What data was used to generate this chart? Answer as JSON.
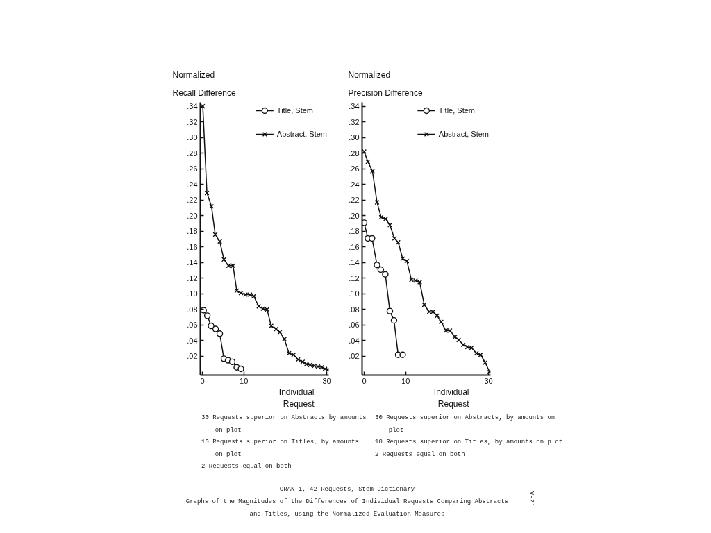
{
  "chart_data": [
    {
      "type": "line",
      "ylabel": "Normalized Recall Difference",
      "xlabel": "Individual Request",
      "xlim": [
        -0.5,
        30.5
      ],
      "ylim": [
        -0.004,
        0.345
      ],
      "xticks": [
        0,
        10,
        30
      ],
      "yticks": [
        {
          "value": 0.02,
          "label": ".02"
        },
        {
          "value": 0.04,
          "label": ".04"
        },
        {
          "value": 0.06,
          "label": ".06"
        },
        {
          "value": 0.08,
          "label": ".08"
        },
        {
          "value": 0.1,
          "label": ".10"
        },
        {
          "value": 0.12,
          "label": ".12"
        },
        {
          "value": 0.14,
          "label": ".14"
        },
        {
          "value": 0.16,
          "label": ".16"
        },
        {
          "value": 0.18,
          "label": ".18"
        },
        {
          "value": 0.2,
          "label": ".20"
        },
        {
          "value": 0.22,
          "label": ".22"
        },
        {
          "value": 0.24,
          "label": ".24"
        },
        {
          "value": 0.26,
          "label": ".26"
        },
        {
          "value": 0.28,
          "label": ".28"
        },
        {
          "value": 0.3,
          "label": ".30"
        },
        {
          "value": 0.32,
          "label": ".32"
        },
        {
          "value": 0.34,
          "label": ".34"
        }
      ],
      "legend": "top right",
      "line_style": "solid",
      "series": [
        {
          "name": "Title, Stem",
          "color": "#111111",
          "marker": "circle",
          "x": [
            0.3,
            1.2,
            2.1,
            3.2,
            4.2,
            5.2,
            6.2,
            7.2,
            8.3,
            9.3
          ],
          "values": [
            0.079,
            0.072,
            0.059,
            0.055,
            0.049,
            0.017,
            0.015,
            0.013,
            0.006,
            0.004
          ]
        },
        {
          "name": "Abstract, Stem",
          "color": "#111111",
          "marker": "cross",
          "x": [
            0.1,
            1.1,
            2.2,
            3.1,
            4.2,
            5.2,
            6.3,
            7.4,
            8.3,
            9.3,
            10.4,
            11.5,
            12.4,
            13.6,
            14.6,
            15.6,
            16.6,
            17.8,
            18.7,
            19.8,
            20.9,
            22.0,
            23.1,
            24.2,
            25.1,
            26.0,
            27.0,
            27.9,
            28.8,
            29.6,
            30.3
          ],
          "values": [
            0.34,
            0.229,
            0.212,
            0.176,
            0.167,
            0.144,
            0.136,
            0.136,
            0.104,
            0.101,
            0.099,
            0.099,
            0.097,
            0.084,
            0.081,
            0.08,
            0.059,
            0.055,
            0.051,
            0.042,
            0.024,
            0.022,
            0.016,
            0.013,
            0.01,
            0.009,
            0.008,
            0.007,
            0.006,
            0.004,
            0.003
          ]
        }
      ],
      "annotations": [
        "30 Requests superior on Abstracts by amounts on plot",
        "10 Requests superior on Titles, by amounts on plot",
        "2 Requests equal on both"
      ]
    },
    {
      "type": "line",
      "ylabel": "Normalized Precision Difference",
      "xlabel": "Individual Request",
      "xlim": [
        -0.5,
        30.5
      ],
      "ylim": [
        -0.004,
        0.345
      ],
      "xticks": [
        0,
        10,
        30
      ],
      "yticks": [
        {
          "value": 0.02,
          "label": ".02"
        },
        {
          "value": 0.04,
          "label": ".04"
        },
        {
          "value": 0.06,
          "label": ".06"
        },
        {
          "value": 0.08,
          "label": ".08"
        },
        {
          "value": 0.1,
          "label": ".10"
        },
        {
          "value": 0.12,
          "label": ".12"
        },
        {
          "value": 0.14,
          "label": ".14"
        },
        {
          "value": 0.16,
          "label": ".16"
        },
        {
          "value": 0.18,
          "label": ".18"
        },
        {
          "value": 0.2,
          "label": ".20"
        },
        {
          "value": 0.22,
          "label": ".22"
        },
        {
          "value": 0.24,
          "label": ".24"
        },
        {
          "value": 0.26,
          "label": ".26"
        },
        {
          "value": 0.28,
          "label": ".28"
        },
        {
          "value": 0.3,
          "label": ".30"
        },
        {
          "value": 0.32,
          "label": ".32"
        },
        {
          "value": 0.34,
          "label": ".34"
        }
      ],
      "legend": "top right",
      "line_style": "solid",
      "series": [
        {
          "name": "Title, Stem",
          "color": "#111111",
          "marker": "circle",
          "x": [
            0.0,
            0.9,
            1.9,
            3.1,
            4.0,
            5.1,
            6.2,
            7.2,
            8.2,
            9.3
          ],
          "values": [
            0.191,
            0.171,
            0.171,
            0.137,
            0.131,
            0.125,
            0.078,
            0.066,
            0.022,
            0.022
          ]
        },
        {
          "name": "Abstract, Stem",
          "color": "#111111",
          "marker": "cross",
          "x": [
            0.0,
            0.9,
            2.0,
            3.1,
            4.1,
            5.2,
            6.2,
            7.3,
            8.2,
            9.3,
            10.3,
            11.4,
            12.4,
            13.4,
            14.5,
            15.7,
            16.6,
            17.6,
            18.6,
            19.7,
            20.7,
            21.9,
            22.8,
            23.9,
            24.9,
            25.9,
            27.1,
            28.1,
            29.2,
            30.3
          ],
          "values": [
            0.282,
            0.269,
            0.257,
            0.217,
            0.198,
            0.196,
            0.188,
            0.171,
            0.166,
            0.145,
            0.142,
            0.118,
            0.117,
            0.115,
            0.086,
            0.077,
            0.077,
            0.072,
            0.064,
            0.053,
            0.053,
            0.045,
            0.041,
            0.035,
            0.032,
            0.031,
            0.024,
            0.022,
            0.012,
            0.0
          ]
        }
      ],
      "annotations": [
        "30 Requests superior on Abstracts, by amounts on plot",
        "10 Requests superior on Titles, by amounts on plot",
        "2 Requests equal on both"
      ]
    },
    {
      "type": "other",
      "annotations": [
        "CRAN-1, 42 Requests, Stem Dictionary",
        "Graphs of the Magnitudes of the Differences of Individual Requests Comparing Abstracts and Titles, using the Normalized Evaluation Measures",
        "V-21"
      ]
    }
  ]
}
